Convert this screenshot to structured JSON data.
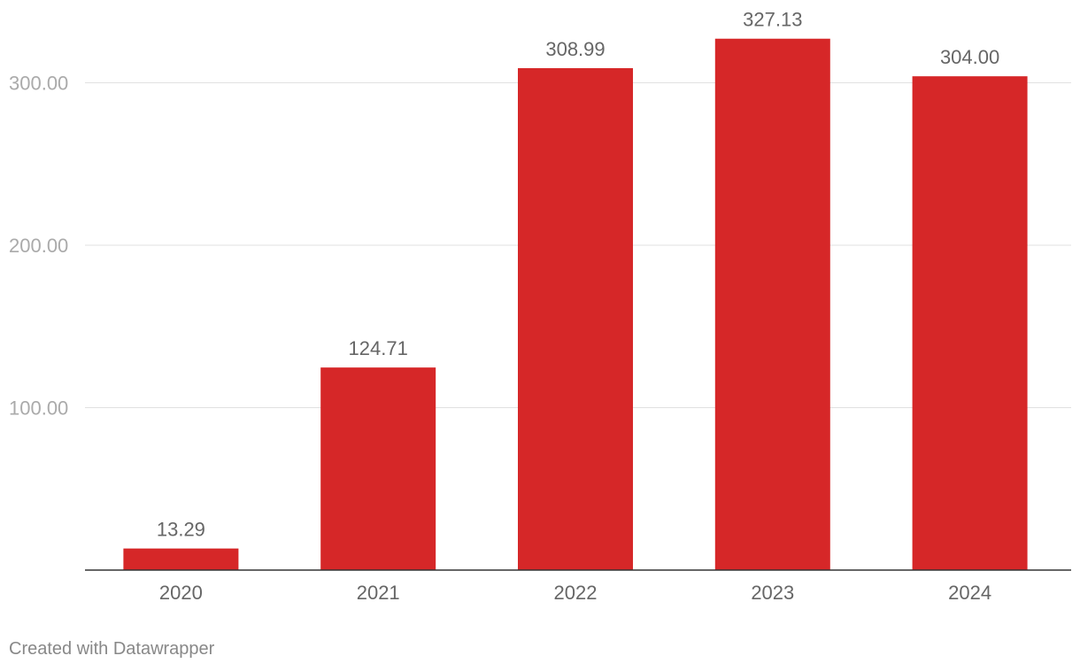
{
  "chart_data": {
    "type": "bar",
    "categories": [
      "2020",
      "2021",
      "2022",
      "2023",
      "2024"
    ],
    "values": [
      13.29,
      124.71,
      308.99,
      327.13,
      304.0
    ],
    "value_labels": [
      "13.29",
      "124.71",
      "308.99",
      "327.13",
      "304.00"
    ],
    "yticks": [
      100,
      200,
      300
    ],
    "ytick_labels": [
      "100.00",
      "200.00",
      "300.00"
    ],
    "ylim": [
      0,
      330
    ],
    "grid": true,
    "bar_color": "#d62728",
    "title": "",
    "xlabel": "",
    "ylabel": ""
  },
  "footer": {
    "credit": "Created with Datawrapper"
  }
}
